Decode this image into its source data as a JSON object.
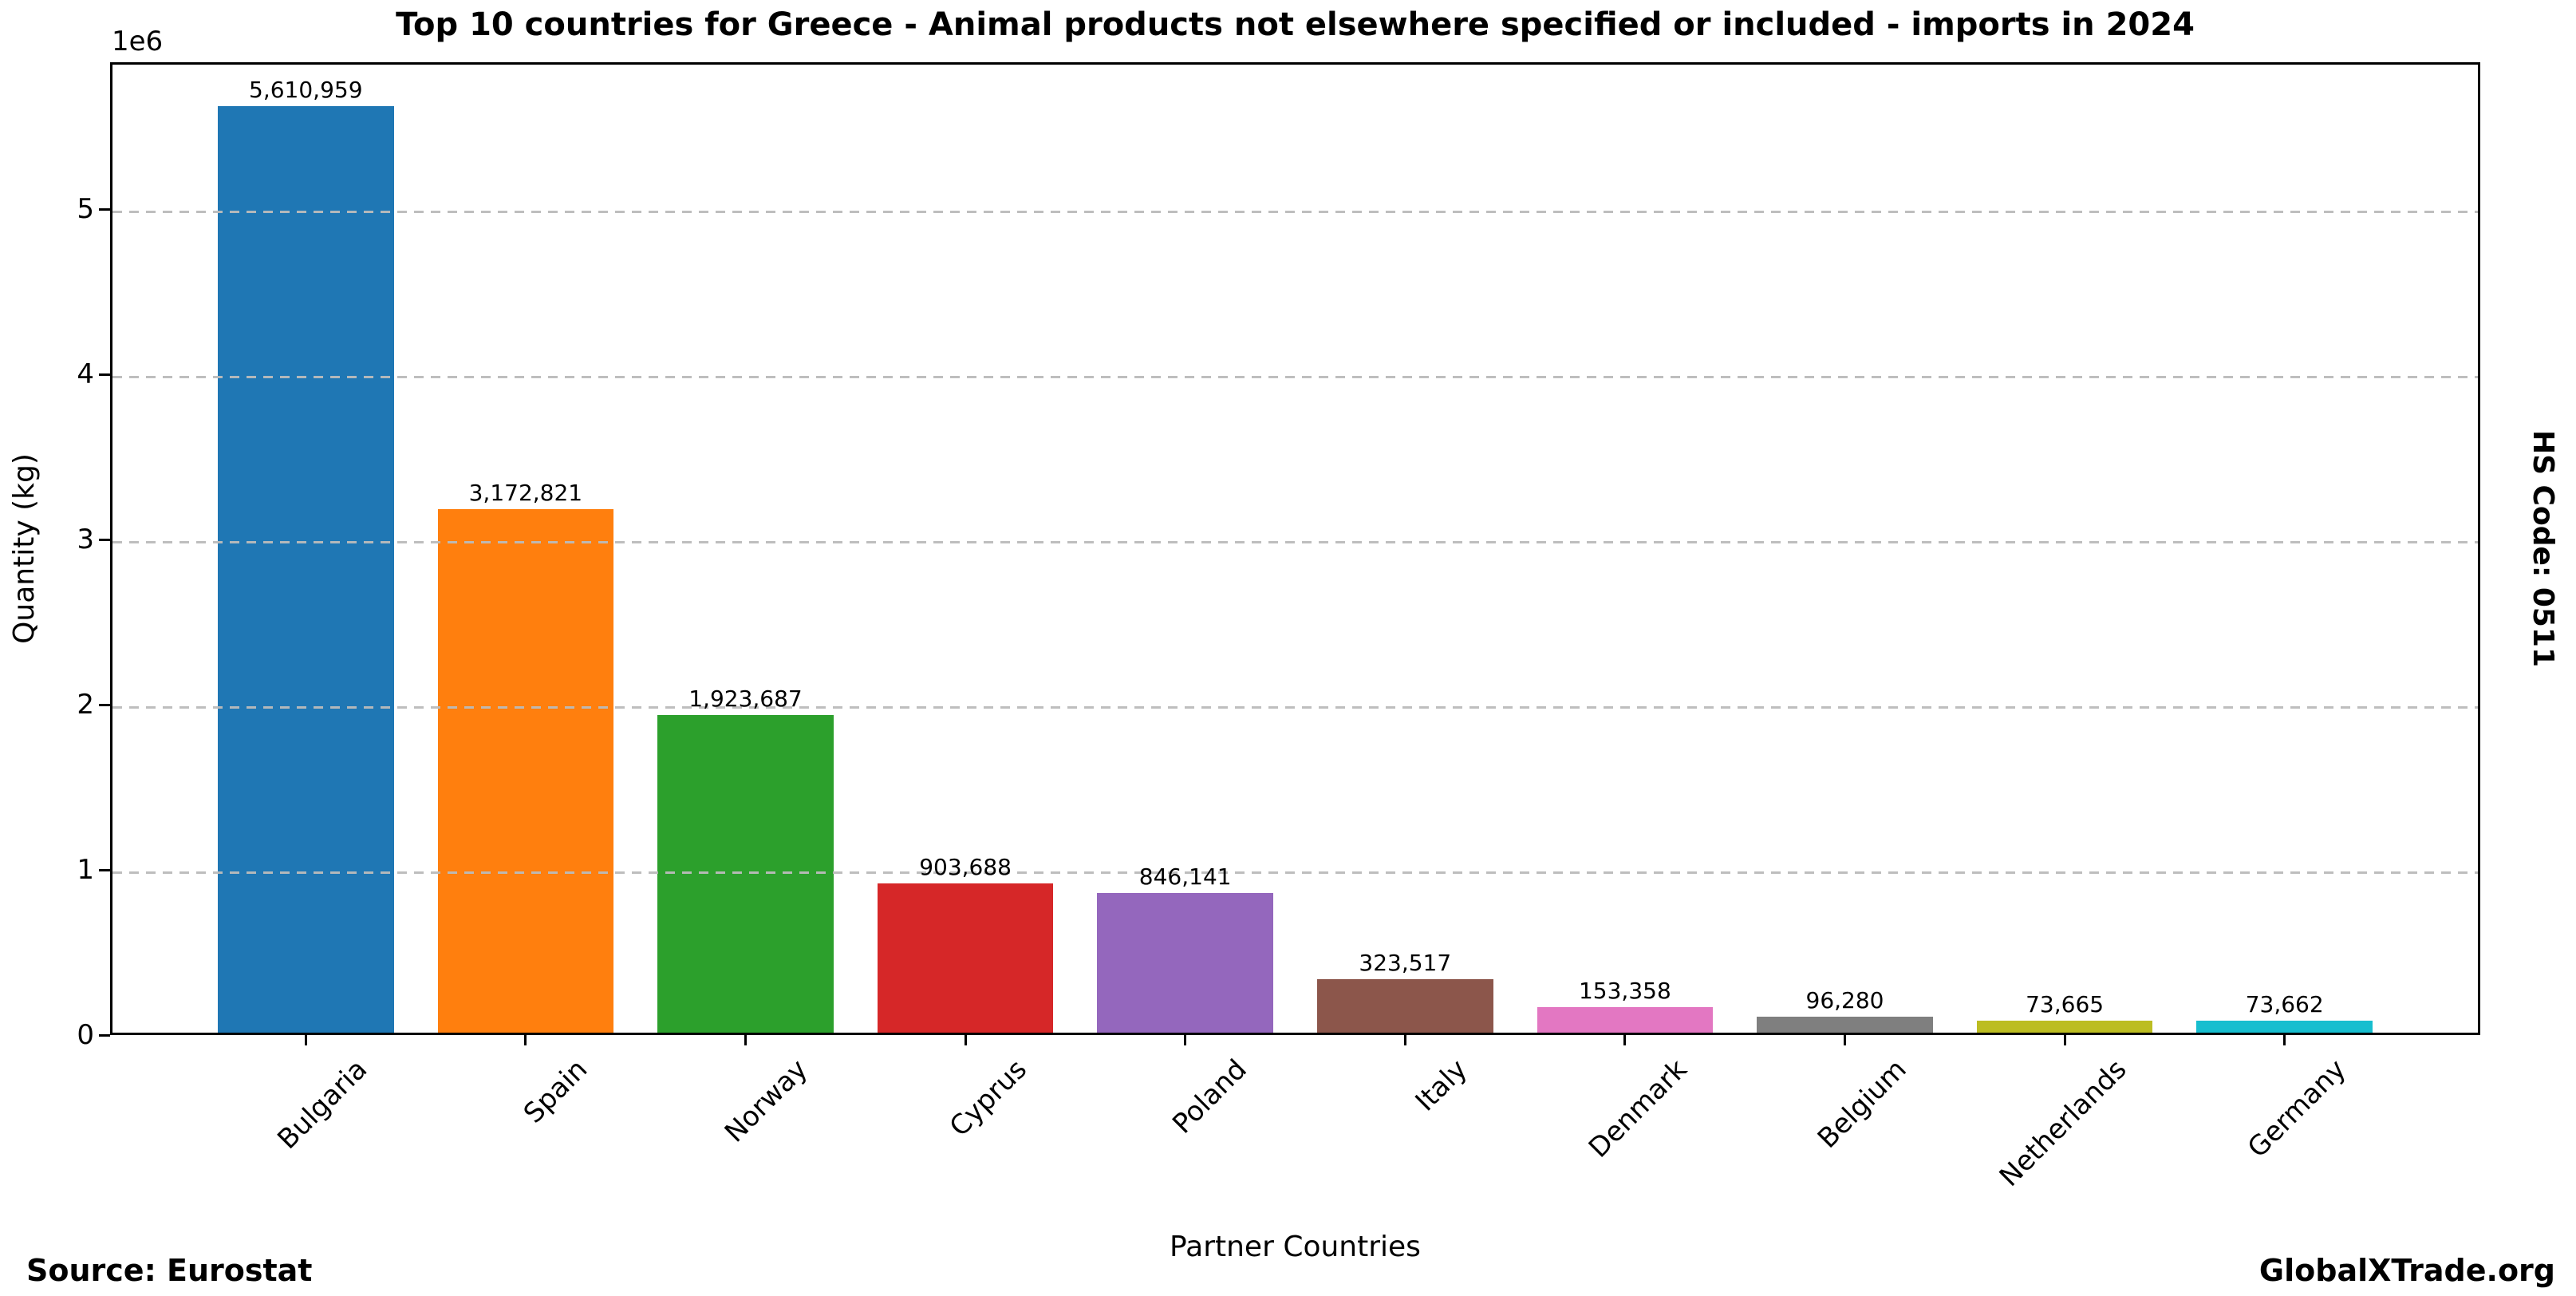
{
  "title": "Top 10 countries for Greece - Animal products not elsewhere specified or included - imports in 2024",
  "side_label": "HS Code: 0511",
  "x_axis": {
    "label": "Partner Countries"
  },
  "y_axis": {
    "label": "Quantity (kg)",
    "offset_label": "1e6"
  },
  "footer": {
    "source": "Source: Eurostat",
    "brand": "GlobalXTrade.org"
  },
  "chart_data": {
    "type": "bar",
    "title": "Top 10 countries for Greece - Animal products not elsewhere specified or included - imports in 2024",
    "categories": [
      "Bulgaria",
      "Spain",
      "Norway",
      "Cyprus",
      "Poland",
      "Italy",
      "Denmark",
      "Belgium",
      "Netherlands",
      "Germany"
    ],
    "values": [
      5610959,
      3172821,
      1923687,
      903688,
      846141,
      323517,
      153358,
      96280,
      73665,
      73662
    ],
    "value_labels": [
      "5,610,959",
      "3,172,821",
      "1,923,687",
      "903,688",
      "846,141",
      "323,517",
      "153,358",
      "96,280",
      "73,665",
      "73,662"
    ],
    "bar_colors": [
      "#1f77b4",
      "#ff7f0e",
      "#2ca02c",
      "#d62728",
      "#9467bd",
      "#8c564b",
      "#e377c2",
      "#7f7f7f",
      "#bcbd22",
      "#17becf"
    ],
    "xlabel": "Partner Countries",
    "ylabel": "Quantity (kg)",
    "ylim": [
      0,
      5891507
    ],
    "yticks": [
      0,
      1000000,
      2000000,
      3000000,
      4000000,
      5000000
    ],
    "ytick_labels": [
      "0",
      "1",
      "2",
      "3",
      "4",
      "5"
    ],
    "y_offset_text": "1e6",
    "grid": "horizontal dashed, drawn above bars",
    "legend": "none",
    "xtick_rotation_deg": 45
  }
}
